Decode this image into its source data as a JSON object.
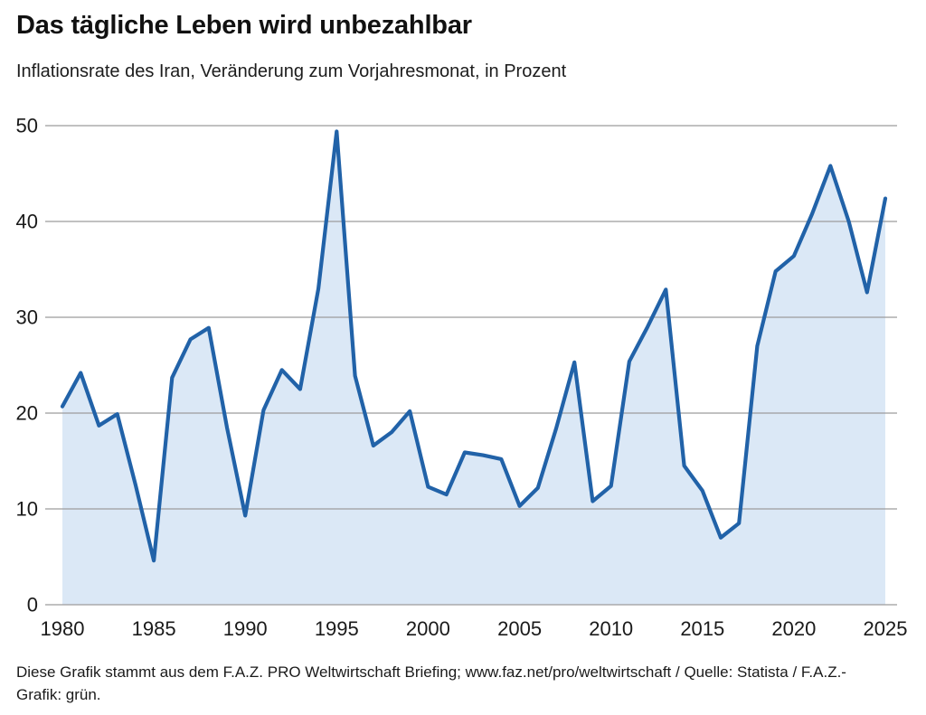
{
  "header": {
    "title": "Das tägliche Leben wird unbezahlbar",
    "subtitle": "Inflationsrate des Iran, Veränderung zum Vorjahresmonat, in Prozent"
  },
  "footer": {
    "line1": "Diese Grafik stammt aus dem F.A.Z. PRO Weltwirtschaft Briefing; www.faz.net/pro/weltwirtschaft / Quelle: Statista / F.A.Z.-",
    "line2": "Grafik: grün."
  },
  "chart_data": {
    "type": "area",
    "title": "Das tägliche Leben wird unbezahlbar",
    "subtitle": "Inflationsrate des Iran, Veränderung zum Vorjahresmonat, in Prozent",
    "series_name": "Inflationsrate Iran, Prozent",
    "x": [
      1980,
      1981,
      1982,
      1983,
      1984,
      1985,
      1986,
      1987,
      1988,
      1989,
      1990,
      1991,
      1992,
      1993,
      1994,
      1995,
      1996,
      1997,
      1998,
      1999,
      2000,
      2001,
      2002,
      2003,
      2004,
      2005,
      2006,
      2007,
      2008,
      2009,
      2010,
      2011,
      2012,
      2013,
      2014,
      2015,
      2016,
      2017,
      2018,
      2019,
      2020,
      2021,
      2022,
      2023,
      2024,
      2025
    ],
    "values": [
      20.7,
      24.2,
      18.7,
      19.9,
      12.5,
      4.6,
      23.7,
      27.7,
      28.9,
      18.5,
      9.3,
      20.3,
      24.5,
      22.5,
      33.0,
      49.4,
      23.9,
      16.6,
      18.0,
      20.2,
      12.3,
      11.5,
      15.9,
      15.6,
      15.2,
      10.3,
      12.2,
      18.4,
      25.3,
      10.8,
      12.4,
      25.4,
      29.0,
      32.9,
      14.5,
      11.9,
      7.0,
      8.5,
      27.0,
      34.8,
      36.4,
      40.8,
      45.8,
      40.0,
      32.6,
      42.4
    ],
    "xlim": [
      1980,
      2025
    ],
    "ylim": [
      0,
      50
    ],
    "x_ticks": [
      1980,
      1985,
      1990,
      1995,
      2000,
      2005,
      2010,
      2015,
      2020,
      2025
    ],
    "y_ticks": [
      0,
      10,
      20,
      30,
      40,
      50
    ],
    "xlabel": "",
    "ylabel": "",
    "grid": true,
    "legend": false,
    "colors": {
      "line": "#2162a8",
      "fill": "#dbe8f6",
      "grid": "#9c9c9c",
      "axis_text": "#1a1a1a"
    }
  }
}
